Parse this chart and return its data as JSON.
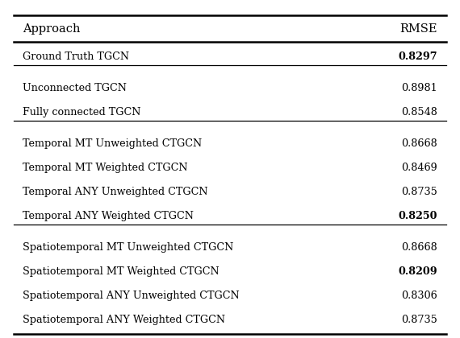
{
  "col_headers": [
    "Approach",
    "RMSE"
  ],
  "rows": [
    {
      "label": "Ground Truth TGCN",
      "value": "0.8297",
      "bold_value": true,
      "group": 0
    },
    {
      "label": "Unconnected TGCN",
      "value": "0.8981",
      "bold_value": false,
      "group": 1
    },
    {
      "label": "Fully connected TGCN",
      "value": "0.8548",
      "bold_value": false,
      "group": 1
    },
    {
      "label": "Temporal MT Unweighted CTGCN",
      "value": "0.8668",
      "bold_value": false,
      "group": 2
    },
    {
      "label": "Temporal MT Weighted CTGCN",
      "value": "0.8469",
      "bold_value": false,
      "group": 2
    },
    {
      "label": "Temporal ANY Unweighted CTGCN",
      "value": "0.8735",
      "bold_value": false,
      "group": 2
    },
    {
      "label": "Temporal ANY Weighted CTGCN",
      "value": "0.8250",
      "bold_value": true,
      "group": 2
    },
    {
      "label": "Spatiotemporal MT Unweighted CTGCN",
      "value": "0.8668",
      "bold_value": false,
      "group": 3
    },
    {
      "label": "Spatiotemporal MT Weighted CTGCN",
      "value": "0.8209",
      "bold_value": true,
      "group": 3
    },
    {
      "label": "Spatiotemporal ANY Unweighted CTGCN",
      "value": "0.8306",
      "bold_value": false,
      "group": 3
    },
    {
      "label": "Spatiotemporal ANY Weighted CTGCN",
      "value": "0.8735",
      "bold_value": false,
      "group": 3
    }
  ],
  "group_membership": [
    0,
    1,
    1,
    2,
    2,
    2,
    2,
    3,
    3,
    3,
    3
  ],
  "bg_color": "#ffffff",
  "text_color": "#000000",
  "line_color": "#000000",
  "fig_width": 5.7,
  "fig_height": 4.2,
  "dpi": 100
}
